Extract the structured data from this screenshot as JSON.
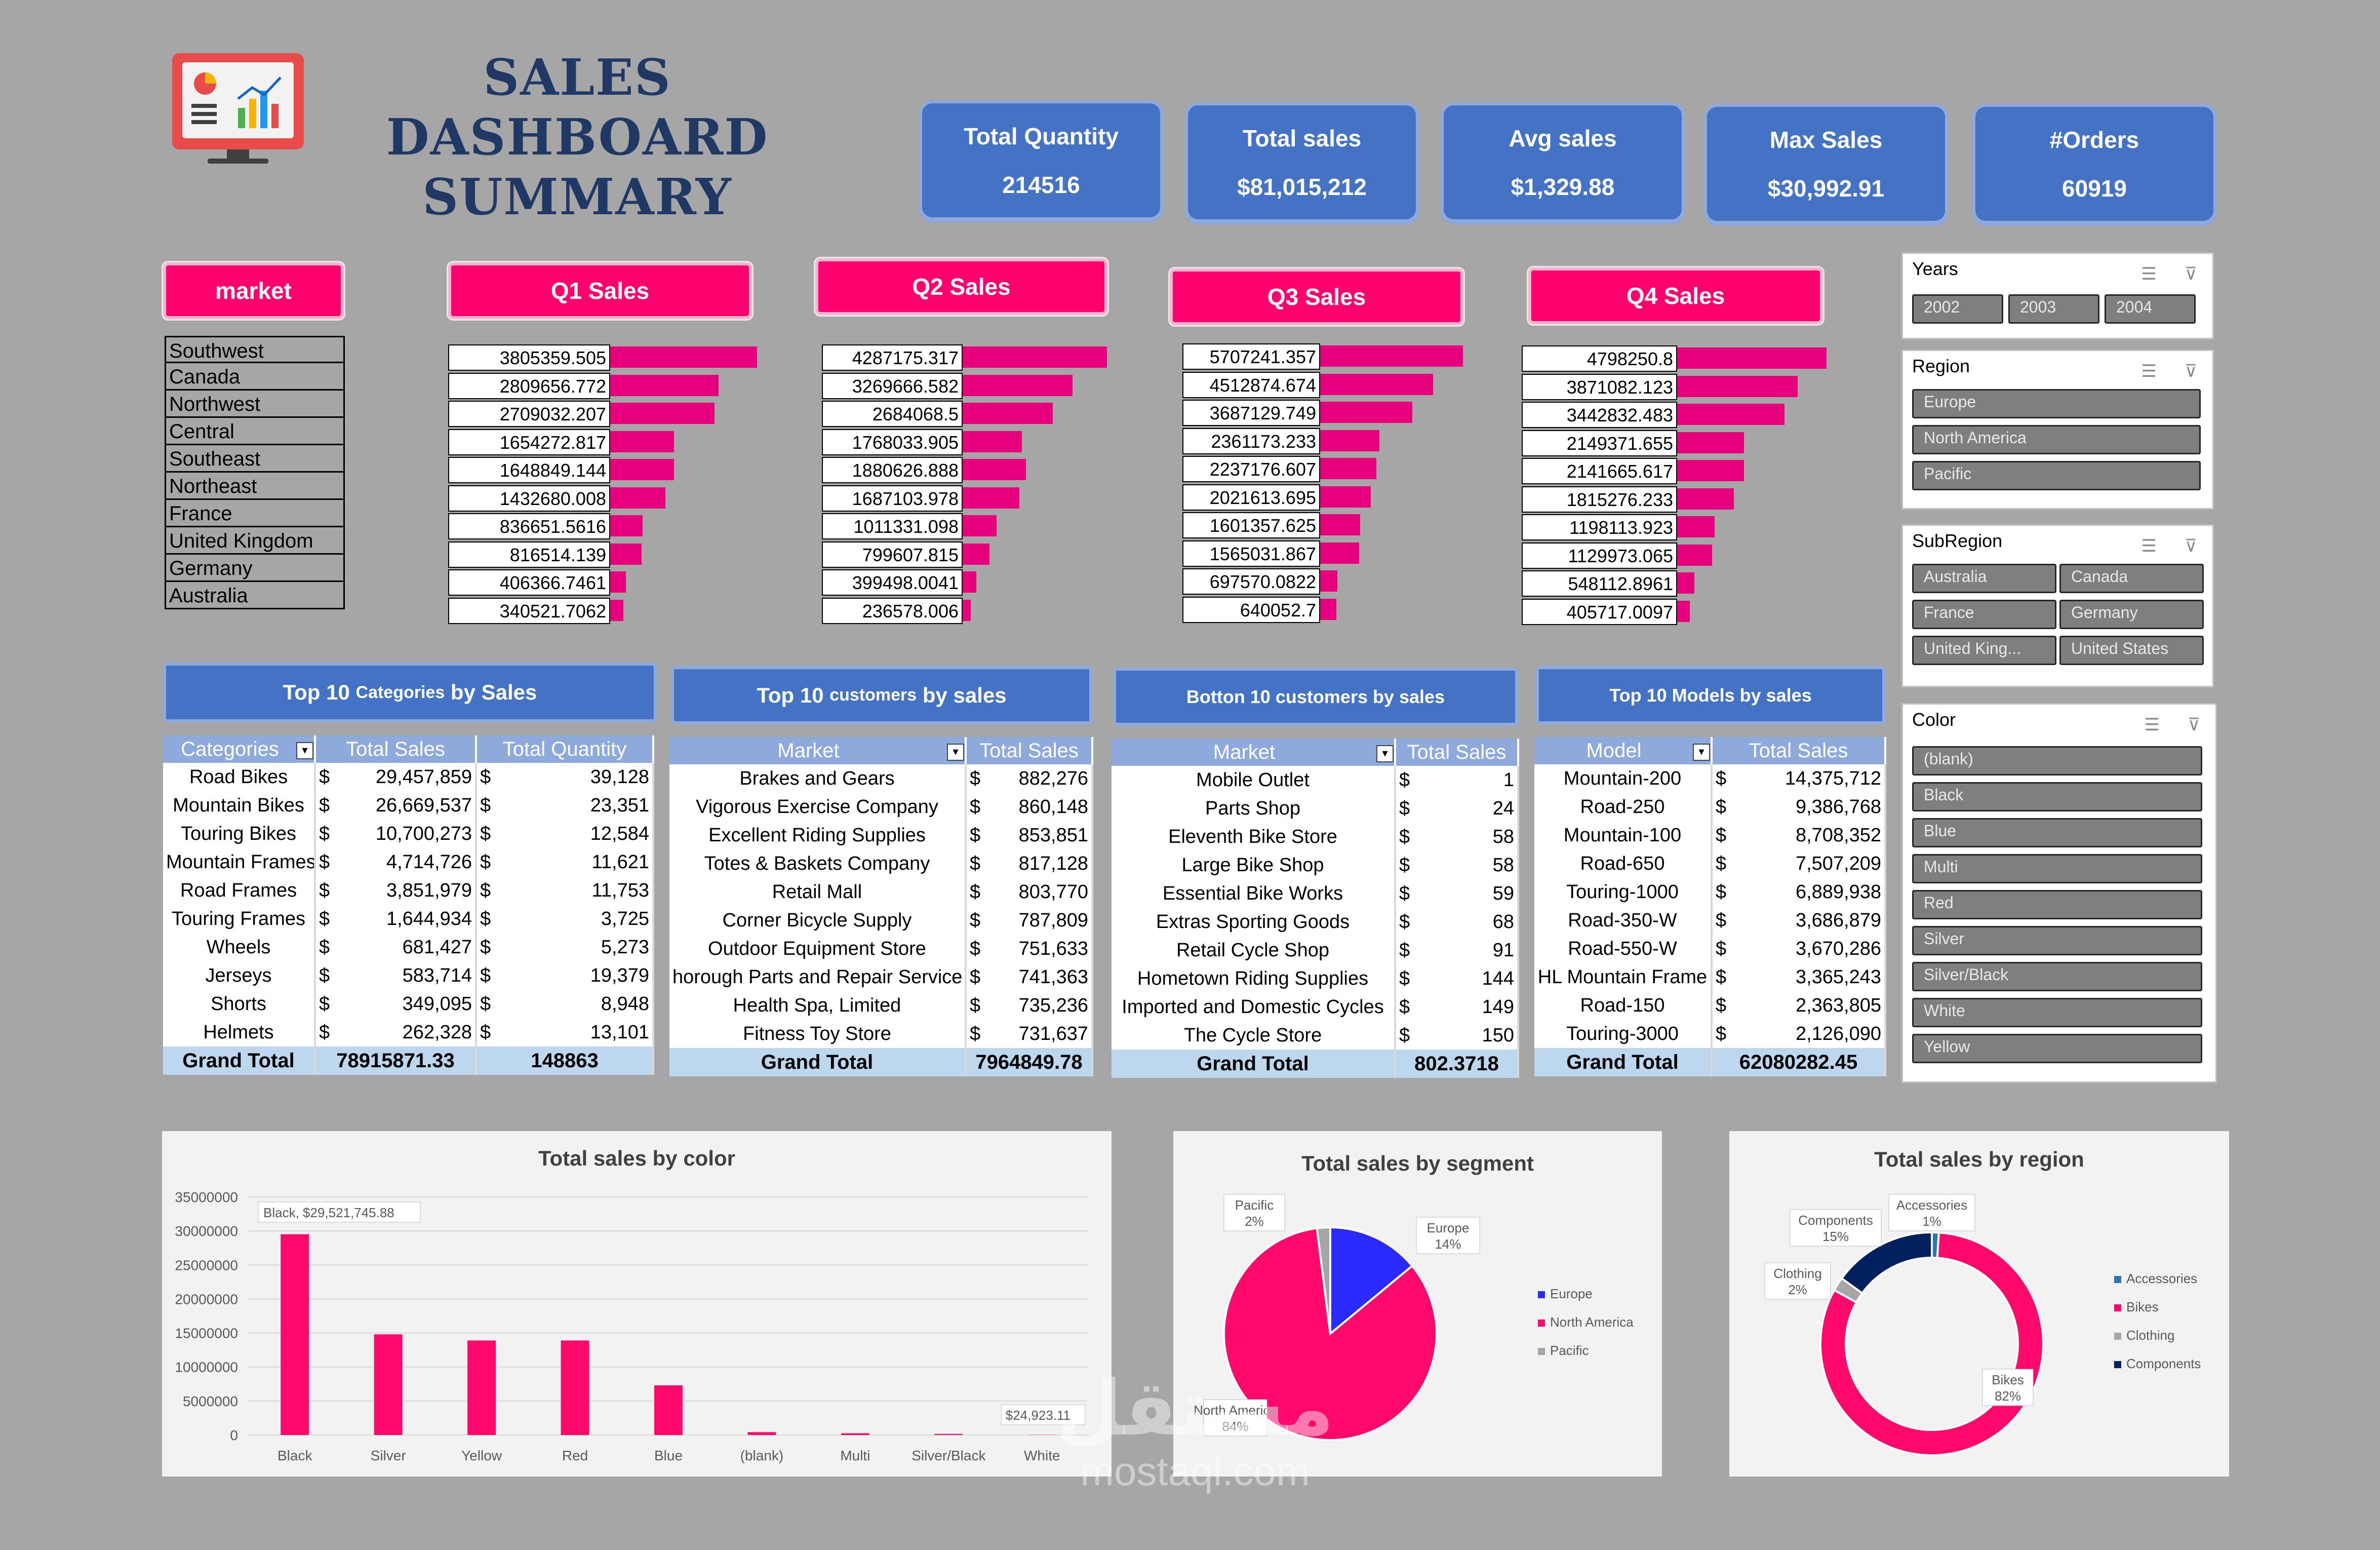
{
  "header": {
    "title_line1": "SALES DASHBOARD",
    "title_line2": "SUMMARY",
    "logo_icon": "dashboard-monitor-icon"
  },
  "kpis": [
    {
      "label": "Total Quantity",
      "value": "214516"
    },
    {
      "label": "Total sales",
      "value": "$81,015,212"
    },
    {
      "label": "Avg sales",
      "value": "$1,329.88"
    },
    {
      "label": "Max Sales",
      "value": "$30,992.91"
    },
    {
      "label": "#Orders",
      "value": "60919"
    }
  ],
  "market": {
    "header": "market",
    "items": [
      "Southwest",
      "Canada",
      "Northwest",
      "Central",
      "Southeast",
      "Northeast",
      "France",
      "United Kingdom",
      "Germany",
      "Australia"
    ]
  },
  "quarters": [
    {
      "header": "Q1 Sales",
      "values": [
        "3805359.505",
        "2809656.772",
        "2709032.207",
        "1654272.817",
        "1648849.144",
        "1432680.008",
        "836651.5616",
        "816514.139",
        "406366.7461",
        "340521.7062"
      ],
      "fractions": [
        1,
        0.738,
        0.712,
        0.435,
        0.433,
        0.376,
        0.22,
        0.215,
        0.107,
        0.089
      ]
    },
    {
      "header": "Q2 Sales",
      "values": [
        "4287175.317",
        "3269666.582",
        "2684068.5",
        "1768033.905",
        "1880626.888",
        "1687103.978",
        "1011331.098",
        "799607.815",
        "399498.0041",
        "236578.006"
      ],
      "fractions": [
        1,
        0.763,
        0.626,
        0.412,
        0.439,
        0.394,
        0.236,
        0.187,
        0.093,
        0.055
      ]
    },
    {
      "header": "Q3 Sales",
      "values": [
        "5707241.357",
        "4512874.674",
        "3687129.749",
        "2361173.233",
        "2237176.607",
        "2021613.695",
        "1601357.625",
        "1565031.867",
        "697570.0822",
        "640052.7"
      ],
      "fractions": [
        1,
        0.791,
        0.646,
        0.414,
        0.392,
        0.354,
        0.281,
        0.274,
        0.122,
        0.112
      ]
    },
    {
      "header": "Q4 Sales",
      "values": [
        "4798250.8",
        "3871082.123",
        "3442832.483",
        "2149371.655",
        "2141665.617",
        "1815276.233",
        "1198113.923",
        "1129973.065",
        "548112.8961",
        "405717.0097"
      ],
      "fractions": [
        1,
        0.807,
        0.718,
        0.448,
        0.446,
        0.378,
        0.25,
        0.235,
        0.114,
        0.085
      ]
    }
  ],
  "tables": {
    "categories": {
      "title_main": "Top 10",
      "title_sub": "Categories",
      "title_end": "by Sales",
      "columns": [
        "Categories",
        "Total Sales",
        "Total Quantity"
      ],
      "rows": [
        [
          "Road Bikes",
          "29,457,859",
          "39,128"
        ],
        [
          "Mountain Bikes",
          "26,669,537",
          "23,351"
        ],
        [
          "Touring Bikes",
          "10,700,273",
          "12,584"
        ],
        [
          "Mountain Frames",
          "4,714,726",
          "11,621"
        ],
        [
          "Road Frames",
          "3,851,979",
          "11,753"
        ],
        [
          "Touring Frames",
          "1,644,934",
          "3,725"
        ],
        [
          "Wheels",
          "681,427",
          "5,273"
        ],
        [
          "Jerseys",
          "583,714",
          "19,379"
        ],
        [
          "Shorts",
          "349,095",
          "8,948"
        ],
        [
          "Helmets",
          "262,328",
          "13,101"
        ]
      ],
      "total_label": "Grand Total",
      "total_sales": "78915871.33",
      "total_qty": "148863"
    },
    "top_customers": {
      "title_main": "Top 10",
      "title_sub": "customers",
      "title_end": "by sales",
      "columns": [
        "Market",
        "Total Sales"
      ],
      "rows": [
        [
          "Brakes and Gears",
          "882,276"
        ],
        [
          "Vigorous Exercise Company",
          "860,148"
        ],
        [
          "Excellent Riding Supplies",
          "853,851"
        ],
        [
          "Totes & Baskets Company",
          "817,128"
        ],
        [
          "Retail Mall",
          "803,770"
        ],
        [
          "Corner Bicycle Supply",
          "787,809"
        ],
        [
          "Outdoor Equipment Store",
          "751,633"
        ],
        [
          "horough Parts and Repair Service",
          "741,363"
        ],
        [
          "Health Spa, Limited",
          "735,236"
        ],
        [
          "Fitness Toy Store",
          "731,637"
        ]
      ],
      "total_label": "Grand Total",
      "total_sales": "7964849.78"
    },
    "bottom_customers": {
      "title": "Botton 10 customers by sales",
      "columns": [
        "Market",
        "Total Sales"
      ],
      "rows": [
        [
          "Mobile Outlet",
          "1"
        ],
        [
          "Parts Shop",
          "24"
        ],
        [
          "Eleventh Bike Store",
          "58"
        ],
        [
          "Large Bike Shop",
          "58"
        ],
        [
          "Essential Bike Works",
          "59"
        ],
        [
          "Extras Sporting Goods",
          "68"
        ],
        [
          "Retail Cycle Shop",
          "91"
        ],
        [
          "Hometown Riding Supplies",
          "144"
        ],
        [
          "Imported and Domestic Cycles",
          "149"
        ],
        [
          "The Cycle Store",
          "150"
        ]
      ],
      "total_label": "Grand Total",
      "total_sales": "802.3718"
    },
    "models": {
      "title": "Top 10 Models by sales",
      "columns": [
        "Model",
        "Total Sales"
      ],
      "rows": [
        [
          "Mountain-200",
          "14,375,712"
        ],
        [
          "Road-250",
          "9,386,768"
        ],
        [
          "Mountain-100",
          "8,708,352"
        ],
        [
          "Road-650",
          "7,507,209"
        ],
        [
          "Touring-1000",
          "6,889,938"
        ],
        [
          "Road-350-W",
          "3,686,879"
        ],
        [
          "Road-550-W",
          "3,670,286"
        ],
        [
          "HL Mountain Frame",
          "3,365,243"
        ],
        [
          "Road-150",
          "2,363,805"
        ],
        [
          "Touring-3000",
          "2,126,090"
        ]
      ],
      "total_label": "Grand Total",
      "total_sales": "62080282.45"
    },
    "currency_symbol": "$"
  },
  "slicers": {
    "years": {
      "title": "Years",
      "items": [
        "2002",
        "2003",
        "2004"
      ]
    },
    "region": {
      "title": "Region",
      "items": [
        "Europe",
        "North America",
        "Pacific"
      ]
    },
    "subregion": {
      "title": "SubRegion",
      "items": [
        "Australia",
        "Canada",
        "France",
        "Germany",
        "United King...",
        "United States"
      ]
    },
    "color": {
      "title": "Color",
      "items": [
        "(blank)",
        "Black",
        "Blue",
        "Multi",
        "Red",
        "Silver",
        "Silver/Black",
        "White",
        "Yellow"
      ]
    }
  },
  "chart_data": [
    {
      "type": "bar",
      "title": "Total sales by color",
      "categories": [
        "Black",
        "Silver",
        "Yellow",
        "Red",
        "Blue",
        "(blank)",
        "Multi",
        "Silver/Black",
        "White"
      ],
      "values": [
        29521745.88,
        14800000,
        13900000,
        13900000,
        7300000,
        420000,
        260000,
        160000,
        24923.11
      ],
      "yticks": [
        "35000000",
        "30000000",
        "25000000",
        "20000000",
        "15000000",
        "10000000",
        "5000000",
        "0"
      ],
      "ylim": [
        0,
        35000000
      ],
      "annotations": [
        "Black, $29,521,745.88",
        "$24,923.11"
      ],
      "color": "#ff0a6c"
    },
    {
      "type": "pie",
      "title": "Total sales by segment",
      "labels": [
        "Europe",
        "North America",
        "Pacific"
      ],
      "values": [
        14,
        84,
        2
      ],
      "value_labels": [
        "14%",
        "84%",
        "2%"
      ],
      "colors": [
        "#2b2bff",
        "#ff0a6c",
        "#a6a6a6"
      ],
      "legend": "right"
    },
    {
      "type": "pie",
      "title": "Total sales by region",
      "labels": [
        "Accessories",
        "Bikes",
        "Clothing",
        "Components"
      ],
      "values": [
        1,
        82,
        2,
        15
      ],
      "value_labels": [
        "1%",
        "82%",
        "2%",
        "15%"
      ],
      "colors": [
        "#2e75b6",
        "#ff0a6c",
        "#a6a6a6",
        "#002060"
      ],
      "legend": "right"
    }
  ],
  "watermark": {
    "text_ar": "مستقل",
    "text_en": "mostaql.com"
  }
}
